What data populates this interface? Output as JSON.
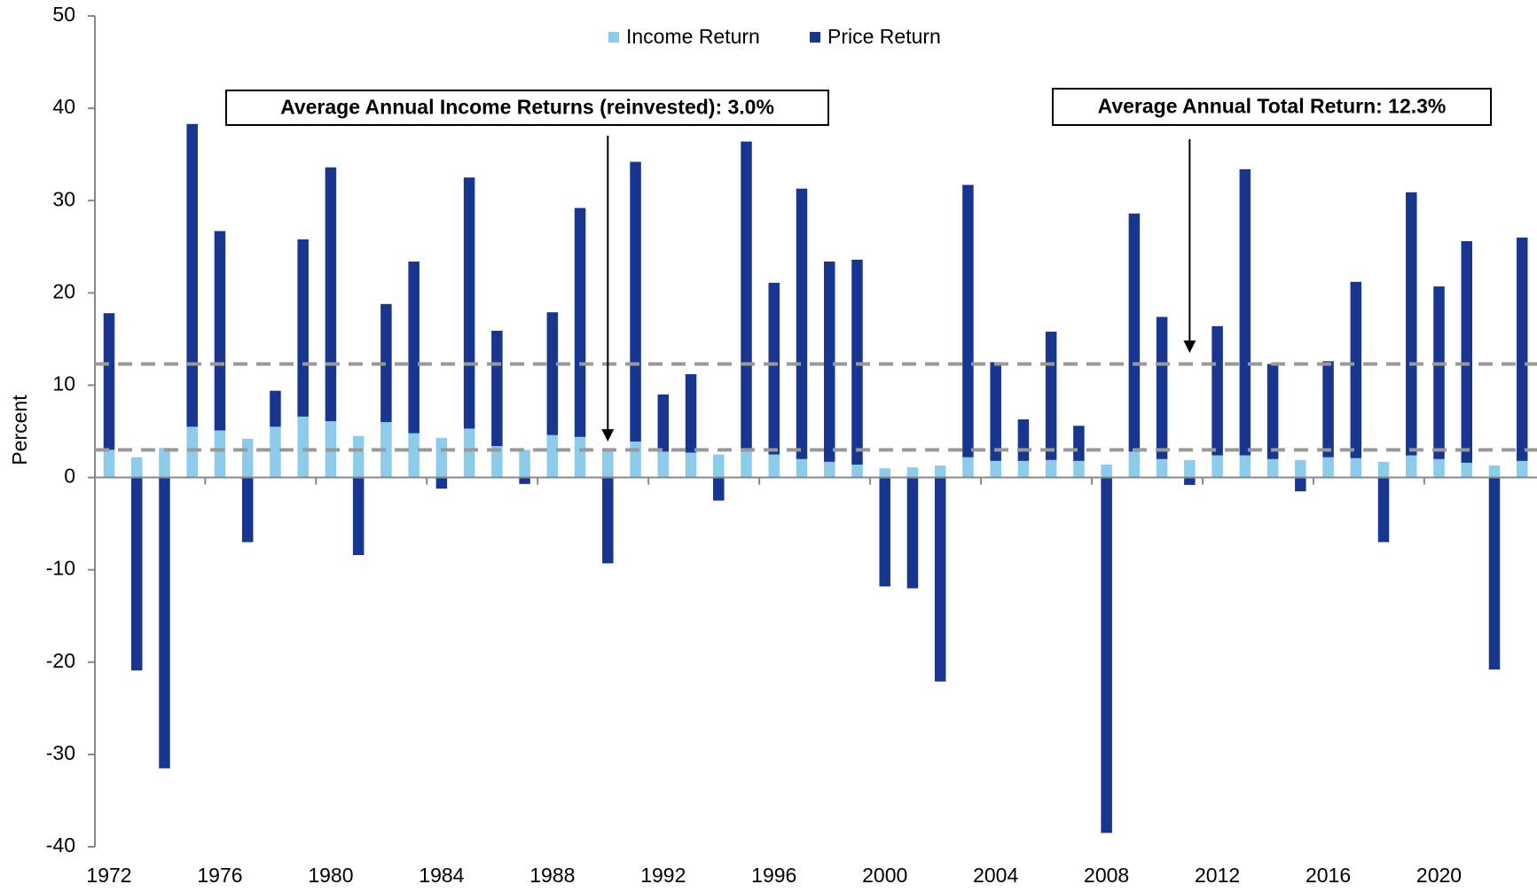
{
  "chart_data": {
    "type": "stacked_bar",
    "y_label": "Percent",
    "categories": [
      "1972",
      null,
      null,
      null,
      "1976",
      null,
      null,
      null,
      "1980",
      null,
      null,
      null,
      "1984",
      null,
      null,
      null,
      "1988",
      null,
      null,
      null,
      "1992",
      null,
      null,
      null,
      "1996",
      null,
      null,
      null,
      "2000",
      null,
      null,
      null,
      "2004",
      null,
      null,
      null,
      "2008",
      null,
      null,
      null,
      "2012",
      null,
      null,
      null,
      "2016",
      null,
      null,
      null,
      "2020",
      null,
      null,
      null
    ],
    "series": [
      {
        "name": "Income Return",
        "color": "#8ccbea",
        "values": [
          3.0,
          2.2,
          3.2,
          5.5,
          5.1,
          4.2,
          5.5,
          6.6,
          6.1,
          4.5,
          6.0,
          4.8,
          4.3,
          5.3,
          3.4,
          3.0,
          4.6,
          4.4,
          3.0,
          3.9,
          2.8,
          2.7,
          2.5,
          2.9,
          2.5,
          2.0,
          1.7,
          1.4,
          1.0,
          1.1,
          1.3,
          2.2,
          1.8,
          1.8,
          1.9,
          1.8,
          1.4,
          2.8,
          2.0,
          1.9,
          2.4,
          2.4,
          2.0,
          1.9,
          2.2,
          2.1,
          1.7,
          2.4,
          2.0,
          1.6,
          1.3,
          1.8
        ]
      },
      {
        "name": "Price Return",
        "color": "#18358f",
        "values": [
          14.8,
          -20.9,
          -31.5,
          32.8,
          21.6,
          -7.0,
          3.9,
          19.2,
          27.5,
          -8.4,
          12.8,
          18.6,
          -1.2,
          27.2,
          12.5,
          -0.7,
          13.3,
          24.8,
          -9.3,
          30.3,
          6.2,
          8.5,
          -2.5,
          33.5,
          18.6,
          29.3,
          21.7,
          22.2,
          -11.8,
          -12.0,
          -22.1,
          29.5,
          10.7,
          4.5,
          13.9,
          3.8,
          -38.5,
          25.8,
          15.4,
          -0.8,
          14.0,
          31.0,
          10.3,
          -1.5,
          10.4,
          19.1,
          -7.0,
          28.5,
          18.7,
          24.0,
          -20.8,
          24.2
        ]
      }
    ],
    "hlines": [
      3.0,
      12.3
    ],
    "annotations": [
      "Average Annual Income Returns (reinvested): 3.0%",
      "Average Annual Total Return: 12.3%"
    ],
    "ylim": [
      -40,
      50
    ],
    "yticks": [
      -40,
      -30,
      -20,
      -10,
      0,
      10,
      20,
      30,
      40,
      50
    ]
  }
}
